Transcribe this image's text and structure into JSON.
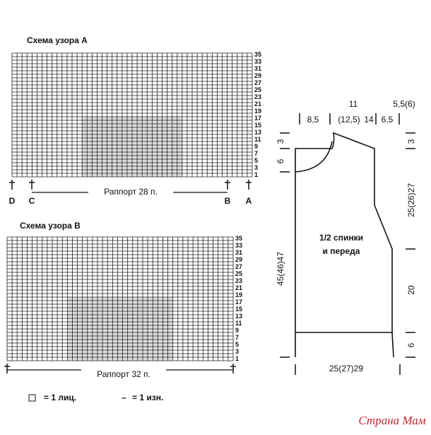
{
  "pattern_a": {
    "title": "Схема узора A",
    "row_numbers": [
      1,
      3,
      5,
      7,
      9,
      11,
      13,
      15,
      17,
      19,
      21,
      23,
      25,
      27,
      29,
      31,
      33,
      35
    ],
    "markers": [
      "D",
      "C",
      "B",
      "A"
    ],
    "repeat": "Раппорт 28 п."
  },
  "pattern_b": {
    "title": "Схема узора B",
    "row_numbers": [
      1,
      3,
      5,
      7,
      9,
      11,
      13,
      15,
      17,
      19,
      21,
      23,
      25,
      27,
      29,
      31,
      33,
      35
    ],
    "repeat": "Раппорт 32 п."
  },
  "legend": {
    "knit": "= 1 лиц.",
    "purl_symbol": "–",
    "purl": "= 1 изн."
  },
  "schematic": {
    "top": [
      "8,5",
      "11",
      "(12,5)",
      "14",
      "5,5(6)",
      "6,5"
    ],
    "left": [
      "3",
      "6",
      "45(46)47"
    ],
    "right": [
      "3",
      "25(26)27",
      "20",
      "6"
    ],
    "bottom": "25(27)29",
    "label": [
      "1/2 спинки",
      "и переда"
    ]
  },
  "watermark": "Страна Мам"
}
